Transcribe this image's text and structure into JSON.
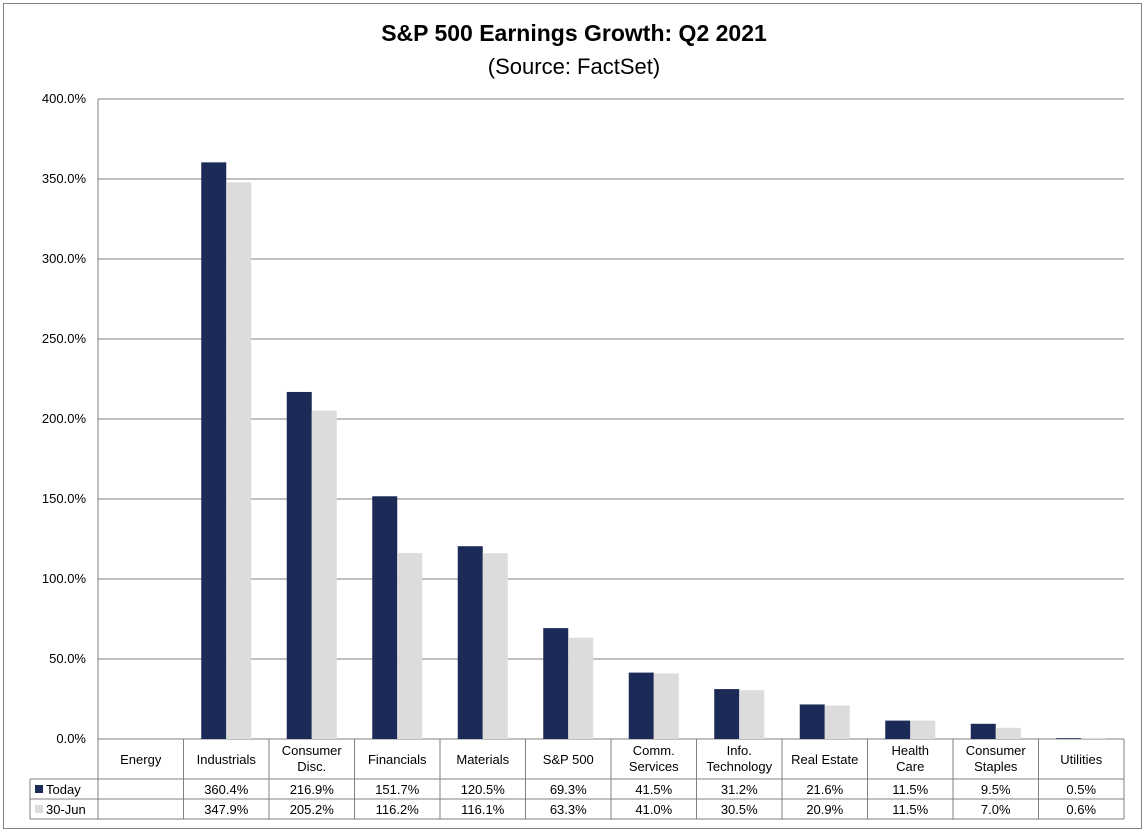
{
  "chart_data": {
    "type": "bar",
    "title": "S&P 500 Earnings Growth: Q2 2021",
    "subtitle": "(Source: FactSet)",
    "categories": [
      [
        "Energy"
      ],
      [
        "Industrials"
      ],
      [
        "Consumer",
        "Disc."
      ],
      [
        "Financials"
      ],
      [
        "Materials"
      ],
      [
        "S&P 500"
      ],
      [
        "Comm.",
        "Services"
      ],
      [
        "Info.",
        "Technology"
      ],
      [
        "Real Estate"
      ],
      [
        "Health",
        "Care"
      ],
      [
        "Consumer",
        "Staples"
      ],
      [
        "Utilities"
      ]
    ],
    "series": [
      {
        "name": "Today",
        "color": "#1b2a56",
        "values": [
          null,
          360.4,
          216.9,
          151.7,
          120.5,
          69.3,
          41.5,
          31.2,
          21.6,
          11.5,
          9.5,
          0.5
        ],
        "labels": [
          "",
          "360.4%",
          "216.9%",
          "151.7%",
          "120.5%",
          "69.3%",
          "41.5%",
          "31.2%",
          "21.6%",
          "11.5%",
          "9.5%",
          "0.5%"
        ]
      },
      {
        "name": "30-Jun",
        "color": "#dcdcdc",
        "values": [
          null,
          347.9,
          205.2,
          116.2,
          116.1,
          63.3,
          41.0,
          30.5,
          20.9,
          11.5,
          7.0,
          0.6
        ],
        "labels": [
          "",
          "347.9%",
          "205.2%",
          "116.2%",
          "116.1%",
          "63.3%",
          "41.0%",
          "30.5%",
          "20.9%",
          "11.5%",
          "7.0%",
          "0.6%"
        ]
      }
    ],
    "yticks": [
      "0.0%",
      "50.0%",
      "100.0%",
      "150.0%",
      "200.0%",
      "250.0%",
      "300.0%",
      "350.0%",
      "400.0%"
    ],
    "ylim": [
      0,
      400
    ],
    "grid": true,
    "legend": "data-table"
  }
}
